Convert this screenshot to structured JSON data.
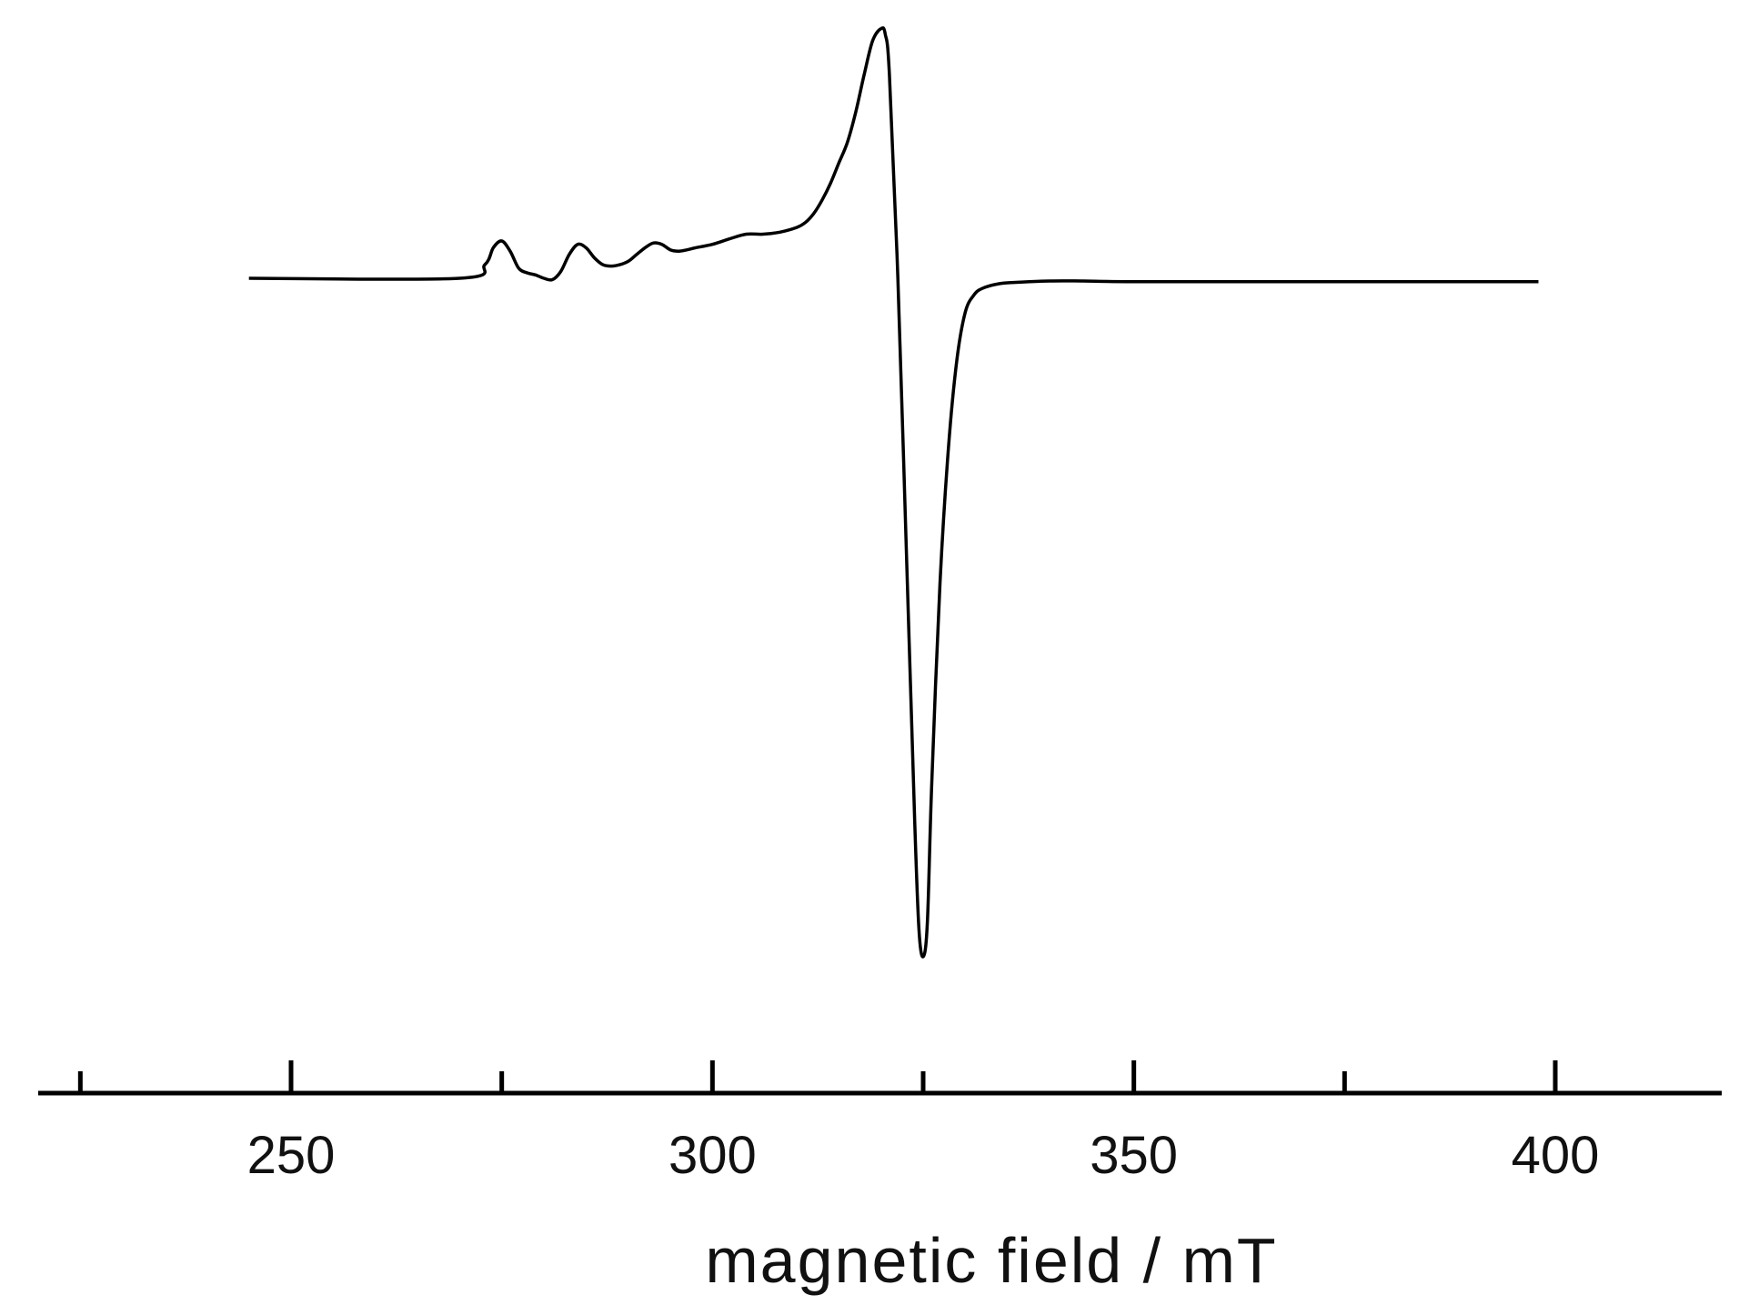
{
  "chart_data": {
    "type": "line",
    "title": "",
    "xlabel": "magnetic field / mT",
    "ylabel": "",
    "xlim": [
      220,
      420
    ],
    "x_major_ticks": [
      250,
      300,
      350,
      400
    ],
    "x_minor_ticks": [
      225,
      275,
      325,
      375
    ],
    "x_tick_labels": [
      "250",
      "300",
      "350",
      "400"
    ],
    "y_axis_shown": false,
    "ylim": [
      -1.0,
      0.37
    ],
    "grid": false,
    "legend": "none",
    "line_color": "#000000",
    "series": [
      {
        "x": [
          245,
          270,
          273,
          274,
          275,
          276,
          277,
          278,
          279,
          280,
          281,
          282,
          283,
          284,
          285,
          286,
          287,
          288,
          289,
          290,
          291,
          292,
          293,
          294,
          295,
          296,
          297,
          298,
          300,
          302,
          304,
          306,
          308,
          310,
          311,
          312,
          313,
          314,
          315,
          316,
          317,
          318,
          319,
          320,
          320.5,
          321,
          322,
          323,
          324,
          324.5,
          325,
          325.5,
          326,
          327,
          328,
          329,
          330,
          331,
          332,
          334,
          336,
          340,
          344,
          350,
          370,
          398
        ],
        "y": [
          0.0,
          0.0,
          0.02,
          0.045,
          0.055,
          0.04,
          0.015,
          0.008,
          0.005,
          0.0,
          -0.002,
          0.01,
          0.035,
          0.05,
          0.045,
          0.03,
          0.02,
          0.018,
          0.02,
          0.025,
          0.035,
          0.045,
          0.052,
          0.05,
          0.042,
          0.04,
          0.042,
          0.045,
          0.05,
          0.058,
          0.065,
          0.065,
          0.068,
          0.075,
          0.082,
          0.095,
          0.115,
          0.14,
          0.17,
          0.2,
          0.245,
          0.3,
          0.35,
          0.368,
          0.36,
          0.3,
          0.0,
          -0.4,
          -0.8,
          -0.96,
          -1.0,
          -0.95,
          -0.75,
          -0.45,
          -0.25,
          -0.12,
          -0.05,
          -0.025,
          -0.015,
          -0.008,
          -0.006,
          -0.004,
          -0.004,
          -0.005,
          -0.005,
          -0.005
        ]
      }
    ]
  }
}
